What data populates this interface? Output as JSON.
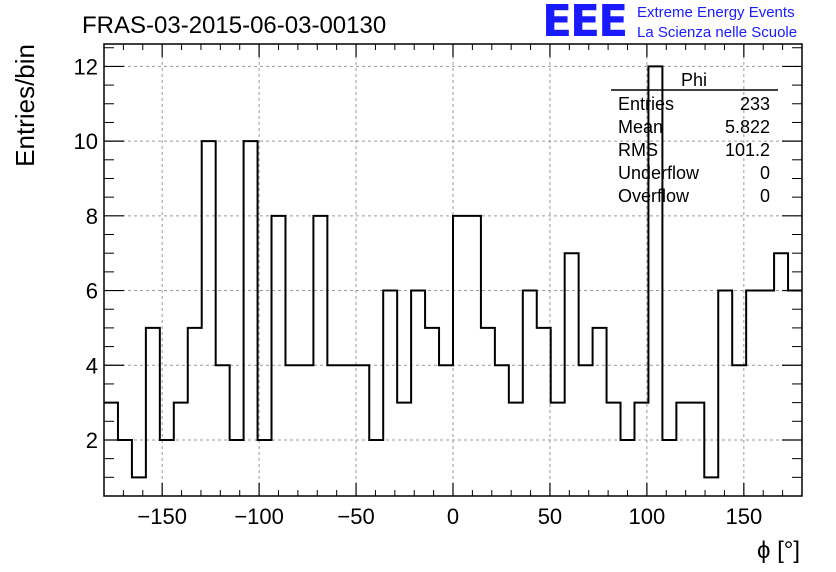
{
  "header": {
    "run_title": "FRAS-03-2015-06-03-00130",
    "logo_text": "EEE",
    "logo_line1": "Extreme Energy Events",
    "logo_line2": "La Scienza nelle Scuole",
    "logo_color": "#1a1aff"
  },
  "stats": {
    "name": "Phi",
    "rows": [
      {
        "label": "Entries",
        "value": "233"
      },
      {
        "label": "Mean",
        "value": "5.822"
      },
      {
        "label": "RMS",
        "value": "101.2"
      },
      {
        "label": "Underflow",
        "value": "0"
      },
      {
        "label": "Overflow",
        "value": "0"
      }
    ]
  },
  "chart_data": {
    "type": "histogram",
    "xlabel": "ϕ [°]",
    "ylabel": "Entries/bin",
    "xlim": [
      -180,
      180
    ],
    "ylim": [
      0.5,
      12.6
    ],
    "xticks": [
      -150,
      -100,
      -50,
      0,
      50,
      100,
      150
    ],
    "yticks": [
      2,
      4,
      6,
      8,
      10,
      12
    ],
    "grid": true,
    "bin_width": 7.2,
    "bin_start": -180,
    "values": [
      3,
      2,
      1,
      5,
      2,
      3,
      5,
      10,
      4,
      2,
      10,
      2,
      8,
      4,
      4,
      8,
      4,
      4,
      4,
      2,
      6,
      3,
      6,
      5,
      4,
      8,
      8,
      5,
      4,
      3,
      6,
      5,
      3,
      7,
      4,
      5,
      3,
      2,
      3,
      12,
      2,
      3,
      3,
      1,
      6,
      4,
      6,
      6,
      7,
      6
    ],
    "line_color": "#000000",
    "grid_color": "#9a9a9a"
  }
}
